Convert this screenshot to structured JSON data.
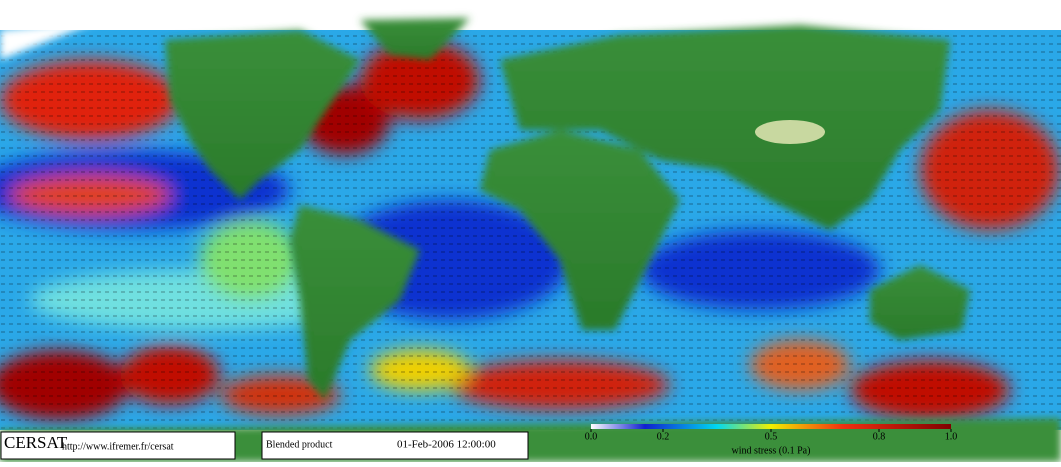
{
  "footer": {
    "logo": "CERSAT",
    "url": "http://www.ifremer.fr/cersat",
    "product": "Blended product",
    "datetime": "01-Feb-2006 12:00:00"
  },
  "colorbar": {
    "label": "wind stress (0.1 Pa)",
    "range": [
      0,
      1
    ],
    "ticks": [
      {
        "value": 0,
        "label": "0.0"
      },
      {
        "value": 0.2,
        "label": "0.2"
      },
      {
        "value": 0.5,
        "label": "0.5"
      },
      {
        "value": 0.8,
        "label": "0.8"
      },
      {
        "value": 1,
        "label": "1.0"
      }
    ]
  }
}
